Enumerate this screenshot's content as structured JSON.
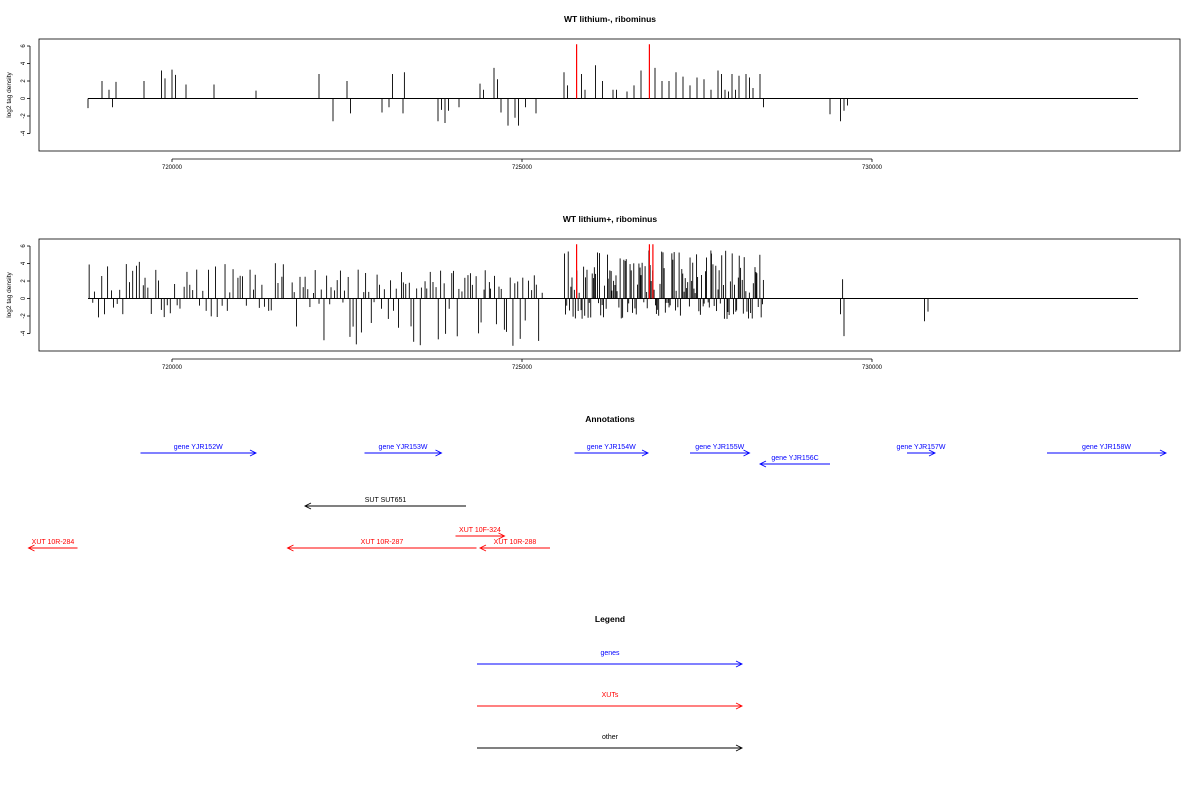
{
  "colors": {
    "axis": "#000000",
    "bar": "#000000",
    "highlight": "#ff0000",
    "genes": "#0000ff",
    "xuts": "#ff0000",
    "other": "#000000"
  },
  "chart_data": [
    {
      "type": "bar",
      "title": "WT lithium-, ribominus",
      "ylabel": "log2 tag density",
      "xlim": [
        718100,
        734400
      ],
      "ylim": [
        -6,
        6.8
      ],
      "yticks": [
        -4,
        -2,
        0,
        2,
        4,
        6
      ],
      "xticks": [
        720000,
        725000,
        730000
      ],
      "xtick_labels": [
        "720000",
        "725000",
        "730000"
      ],
      "baseline": [
        718800,
        733800
      ],
      "highlight_positions": [
        725780,
        726820
      ],
      "highlight_height": 6.2,
      "bars": [
        [
          718800,
          -1.1
        ],
        [
          719000,
          2.0
        ],
        [
          719100,
          1.0
        ],
        [
          719150,
          -1.0
        ],
        [
          719200,
          1.9
        ],
        [
          719600,
          2.0
        ],
        [
          719850,
          3.2
        ],
        [
          719900,
          2.3
        ],
        [
          720000,
          3.3
        ],
        [
          720050,
          2.7
        ],
        [
          720200,
          1.6
        ],
        [
          720600,
          1.6
        ],
        [
          721200,
          0.9
        ],
        [
          722100,
          2.8
        ],
        [
          722300,
          -2.6
        ],
        [
          722500,
          2.0
        ],
        [
          722550,
          -1.7
        ],
        [
          723000,
          -1.6
        ],
        [
          723100,
          -1.0
        ],
        [
          723150,
          2.8
        ],
        [
          723300,
          -1.7
        ],
        [
          723320,
          3.0
        ],
        [
          723800,
          -2.6
        ],
        [
          723850,
          -1.3
        ],
        [
          723900,
          -2.8
        ],
        [
          723950,
          -1.4
        ],
        [
          724100,
          -1.0
        ],
        [
          724400,
          1.7
        ],
        [
          724450,
          1.0
        ],
        [
          724600,
          3.5
        ],
        [
          724650,
          2.2
        ],
        [
          724700,
          -1.6
        ],
        [
          724800,
          -3.1
        ],
        [
          724900,
          -2.2
        ],
        [
          724950,
          -3.1
        ],
        [
          725050,
          -1.0
        ],
        [
          725200,
          -1.7
        ],
        [
          725600,
          3.0
        ],
        [
          725650,
          1.5
        ],
        [
          725850,
          2.8
        ],
        [
          725900,
          1.0
        ],
        [
          726050,
          3.8
        ],
        [
          726150,
          2.0
        ],
        [
          726300,
          1.0
        ],
        [
          726350,
          1.0
        ],
        [
          726500,
          0.8
        ],
        [
          726600,
          1.5
        ],
        [
          726700,
          3.2
        ],
        [
          726900,
          3.5
        ],
        [
          727000,
          2.0
        ],
        [
          727100,
          2.0
        ],
        [
          727200,
          3.0
        ],
        [
          727300,
          2.5
        ],
        [
          727400,
          1.5
        ],
        [
          727500,
          2.4
        ],
        [
          727600,
          2.2
        ],
        [
          727700,
          1.0
        ],
        [
          727800,
          3.2
        ],
        [
          727850,
          2.8
        ],
        [
          727900,
          1.0
        ],
        [
          727950,
          0.8
        ],
        [
          728000,
          2.8
        ],
        [
          728050,
          1.0
        ],
        [
          728100,
          2.6
        ],
        [
          728200,
          2.8
        ],
        [
          728250,
          2.4
        ],
        [
          728300,
          1.2
        ],
        [
          728400,
          2.8
        ],
        [
          728450,
          -1.0
        ],
        [
          729400,
          -1.8
        ],
        [
          729550,
          -2.6
        ],
        [
          729600,
          -1.4
        ],
        [
          729650,
          -0.8
        ]
      ],
      "dense_bars": []
    },
    {
      "type": "bar",
      "title": "WT lithium+, ribominus",
      "ylabel": "log2 tag density",
      "xlim": [
        718100,
        734400
      ],
      "ylim": [
        -6,
        6.8
      ],
      "yticks": [
        -4,
        -2,
        0,
        2,
        4,
        6
      ],
      "xticks": [
        720000,
        725000,
        730000
      ],
      "xtick_labels": [
        "720000",
        "725000",
        "730000"
      ],
      "baseline": [
        718800,
        733800
      ],
      "highlight_positions": [
        725780,
        726820,
        726870
      ],
      "highlight_height": 6.2,
      "bars": [
        [
          729550,
          -1.8
        ],
        [
          729600,
          -4.3
        ],
        [
          729580,
          2.2
        ],
        [
          730750,
          -2.6
        ],
        [
          730800,
          -1.5
        ]
      ],
      "dense_bars": [
        {
          "from": 718800,
          "to": 721600,
          "step": 45,
          "pos_max": 4.2,
          "neg_max": 2.2,
          "seed": 7
        },
        {
          "from": 721700,
          "to": 725300,
          "step": 38,
          "pos_max": 3.3,
          "neg_max": 5.5,
          "seed": 13
        },
        {
          "from": 725600,
          "to": 728450,
          "step": 18,
          "pos_max": 5.6,
          "neg_max": 2.4,
          "seed": 29
        }
      ]
    }
  ],
  "annotations": {
    "title": "Annotations",
    "features": [
      {
        "label": "gene YJR152W",
        "start": 719550,
        "end": 721200,
        "dir": "right",
        "row": 0,
        "type": "gene"
      },
      {
        "label": "gene YJR153W",
        "start": 722750,
        "end": 723850,
        "dir": "right",
        "row": 0,
        "type": "gene"
      },
      {
        "label": "gene YJR154W",
        "start": 725750,
        "end": 726800,
        "dir": "right",
        "row": 0,
        "type": "gene"
      },
      {
        "label": "gene YJR155W",
        "start": 727400,
        "end": 728250,
        "dir": "right",
        "row": 0,
        "type": "gene"
      },
      {
        "label": "gene YJR156C",
        "start": 728400,
        "end": 729400,
        "dir": "left",
        "row": 1,
        "type": "gene"
      },
      {
        "label": "gene YJR157W",
        "start": 730500,
        "end": 730900,
        "dir": "right",
        "row": 0,
        "type": "gene"
      },
      {
        "label": "gene YJR158W",
        "start": 732500,
        "end": 734200,
        "dir": "right",
        "row": 0,
        "type": "gene"
      },
      {
        "label": "SUT SUT651",
        "start": 721900,
        "end": 724200,
        "dir": "left",
        "row": 2,
        "type": "other"
      },
      {
        "label": "XUT 10F-324",
        "start": 724050,
        "end": 724750,
        "dir": "right",
        "row": 3,
        "type": "xut"
      },
      {
        "label": "XUT 10R-284",
        "start": 717950,
        "end": 718650,
        "dir": "left",
        "row": 4,
        "type": "xut"
      },
      {
        "label": "XUT 10R-287",
        "start": 721650,
        "end": 724350,
        "dir": "left",
        "row": 4,
        "type": "xut"
      },
      {
        "label": "XUT 10R-288",
        "start": 724400,
        "end": 725400,
        "dir": "left",
        "row": 4,
        "type": "xut"
      }
    ]
  },
  "legend": {
    "title": "Legend",
    "items": [
      {
        "label": "genes",
        "type": "gene"
      },
      {
        "label": "XUTs",
        "type": "xut"
      },
      {
        "label": "other",
        "type": "other"
      }
    ]
  }
}
